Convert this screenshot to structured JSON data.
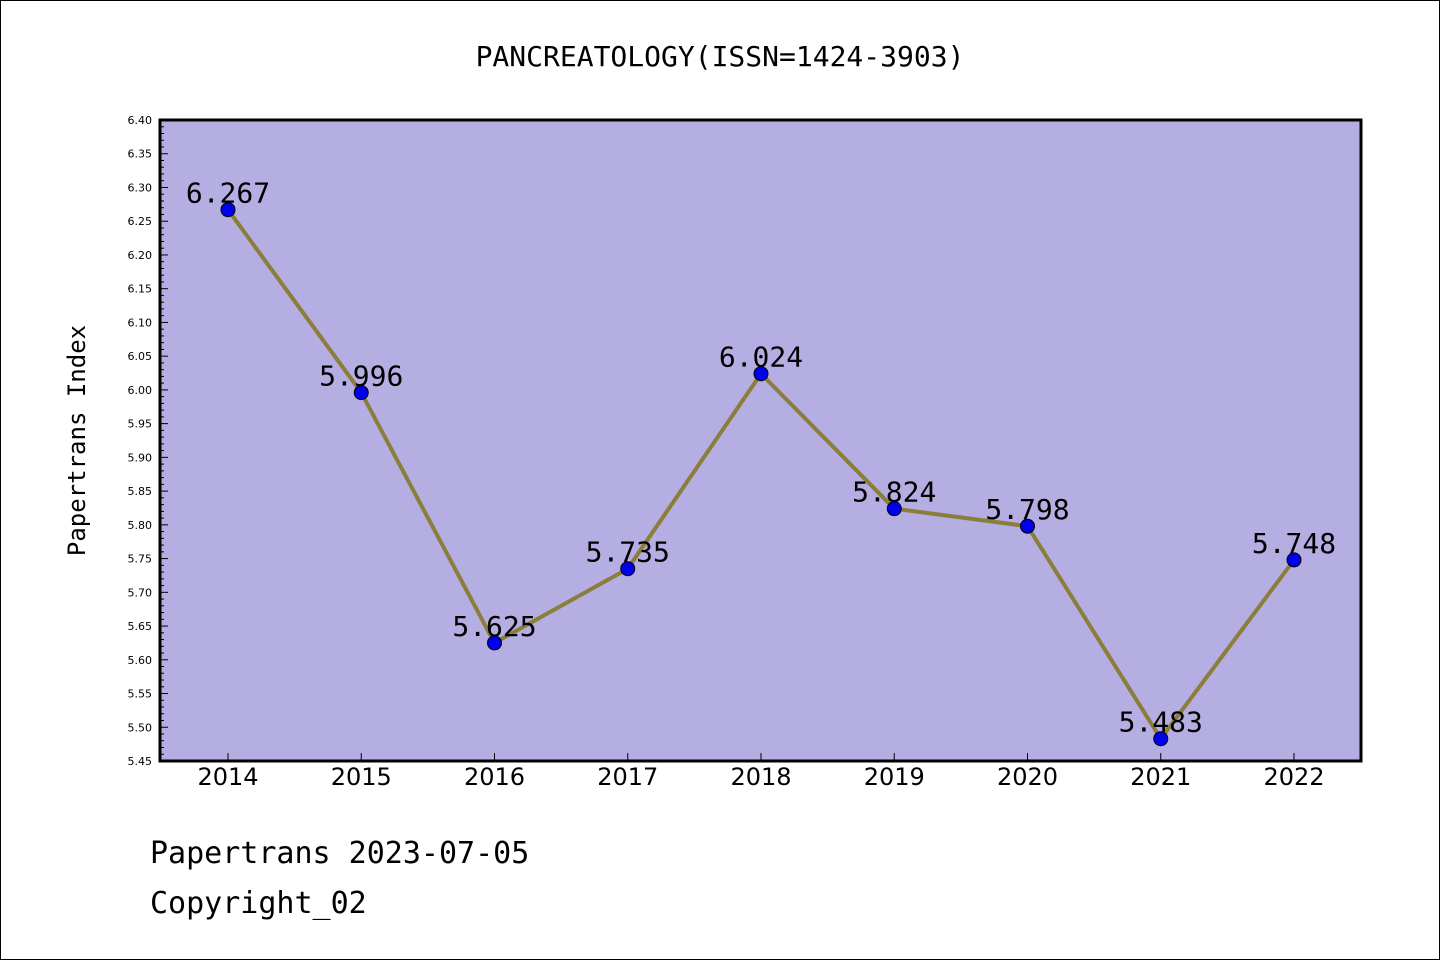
{
  "chart_data": {
    "type": "line",
    "title": "PANCREATOLOGY(ISSN=1424-3903)",
    "xlabel": "",
    "ylabel": "Papertrans Index",
    "categories": [
      "2014",
      "2015",
      "2016",
      "2017",
      "2018",
      "2019",
      "2020",
      "2021",
      "2022"
    ],
    "series": [
      {
        "values": [
          6.267,
          5.996,
          5.625,
          5.735,
          6.024,
          5.824,
          5.798,
          5.483,
          5.748
        ]
      }
    ],
    "data_labels": [
      "6.267",
      "5.996",
      "5.625",
      "5.735",
      "6.024",
      "5.824",
      "5.798",
      "5.483",
      "5.748"
    ],
    "ylim": [
      5.45,
      6.4
    ],
    "yticks": [
      "5.45",
      "5.50",
      "5.55",
      "5.60",
      "5.65",
      "5.70",
      "5.75",
      "5.80",
      "5.85",
      "5.90",
      "5.95",
      "6.00",
      "6.05",
      "6.10",
      "6.15",
      "6.20",
      "6.25",
      "6.30",
      "6.35",
      "6.40"
    ],
    "grid": false,
    "colors": {
      "plot_background": "#b5aee2",
      "line": "#8b7d3a",
      "marker": "#0000ee"
    }
  },
  "footer": {
    "line1": "Papertrans 2023-07-05",
    "line2": "Copyright_02"
  }
}
